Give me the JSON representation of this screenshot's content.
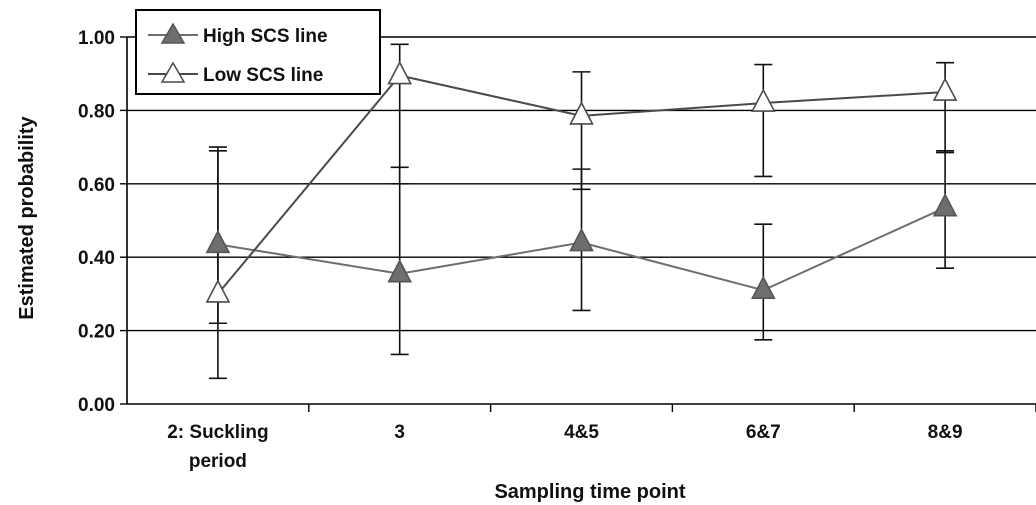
{
  "chart_data": {
    "type": "line",
    "xlabel": "Sampling time point",
    "ylabel": "Estimated probability",
    "categories": [
      [
        "2: Suckling",
        "period"
      ],
      [
        "3"
      ],
      [
        "4&5"
      ],
      [
        "6&7"
      ],
      [
        "8&9"
      ]
    ],
    "ylim": [
      0,
      1
    ],
    "yticks": [
      "0.00",
      "0.20",
      "0.40",
      "0.60",
      "0.80",
      "1.00"
    ],
    "ytick_values": [
      0,
      0.2,
      0.4,
      0.6,
      0.8,
      1.0
    ],
    "grid": true,
    "legend_position": "top-left",
    "series": [
      {
        "name": "High SCS line",
        "marker": "filled-triangle",
        "color": "#6e6e6e",
        "values": [
          0.435,
          0.355,
          0.44,
          0.31,
          0.535
        ],
        "error_low": [
          0.22,
          0.135,
          0.255,
          0.175,
          0.37
        ],
        "error_high": [
          0.7,
          0.645,
          0.64,
          0.49,
          0.69
        ]
      },
      {
        "name": "Low SCS line",
        "marker": "open-triangle",
        "color": "#4a4a4a",
        "values": [
          0.3,
          0.895,
          0.785,
          0.82,
          0.85
        ],
        "error_low": [
          0.07,
          0.6,
          0.585,
          0.62,
          0.685
        ],
        "error_high": [
          0.69,
          0.98,
          0.905,
          0.925,
          0.93
        ]
      }
    ]
  }
}
